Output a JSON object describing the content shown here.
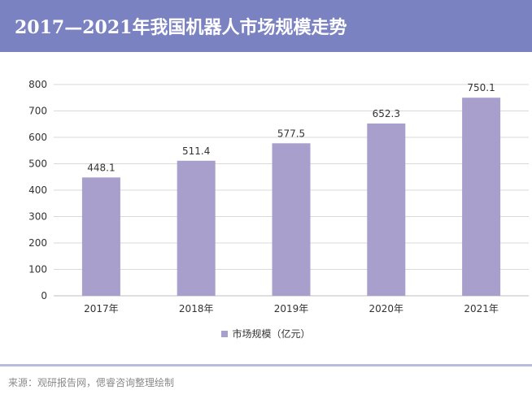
{
  "header": {
    "title": "2017—2021年我国机器人市场规模走势"
  },
  "colors": {
    "header_bg": "#7b82c2",
    "bar": "#a99fcd",
    "divider": "#b8bde0"
  },
  "chart_data": {
    "type": "bar",
    "title": "2017—2021年我国机器人市场规模走势",
    "categories": [
      "2017年",
      "2018年",
      "2019年",
      "2020年",
      "2021年"
    ],
    "series": [
      {
        "name": "市场规模（亿元）",
        "values": [
          448.1,
          511.4,
          577.5,
          652.3,
          750.1
        ]
      }
    ],
    "value_labels": [
      "448.1",
      "511.4",
      "577.5",
      "652.3",
      "750.1"
    ],
    "ylim": [
      0,
      800
    ],
    "yticks": [
      0,
      100,
      200,
      300,
      400,
      500,
      600,
      700,
      800
    ],
    "xlabel": "",
    "ylabel": "",
    "grid": true,
    "legend_position": "bottom"
  },
  "legend": {
    "label": "市场规模（亿元）"
  },
  "footer": {
    "source": "来源：观研报告网，偲睿咨询整理绘制"
  }
}
